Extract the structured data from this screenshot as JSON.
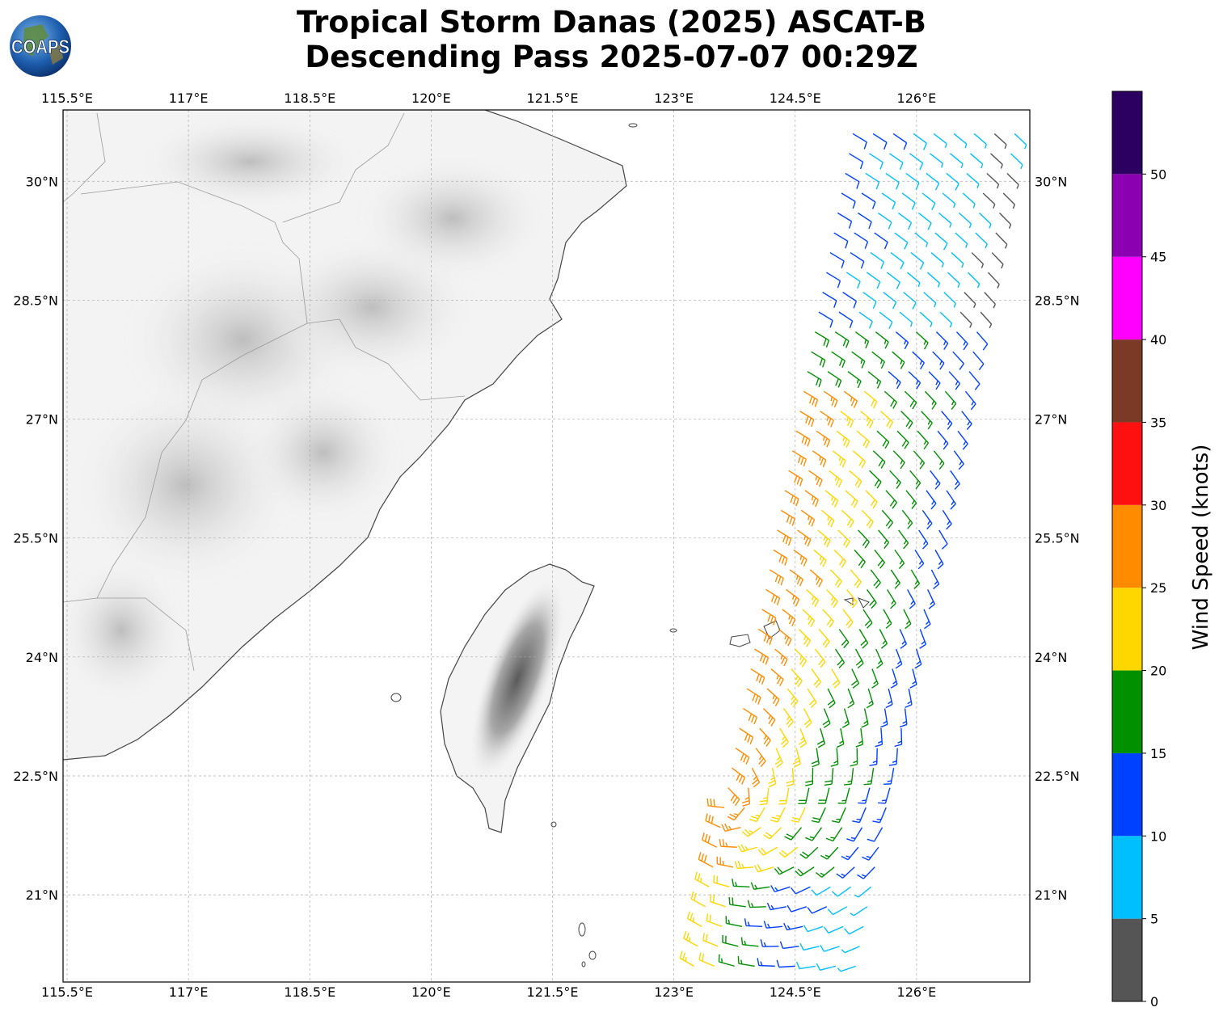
{
  "title": {
    "line1": "Tropical Storm Danas (2025) ASCAT-B",
    "line2": "Descending Pass 2025-07-07 00:29Z"
  },
  "logo": {
    "text": "COAPS",
    "icon": "globe-logo-icon"
  },
  "map": {
    "lon_range": [
      115.45,
      127.4
    ],
    "lat_range": [
      19.9,
      30.9
    ],
    "lon_ticks": [
      "115.5°E",
      "117°E",
      "118.5°E",
      "120°E",
      "121.5°E",
      "123°E",
      "124.5°E",
      "126°E"
    ],
    "lon_tick_values": [
      115.5,
      117,
      118.5,
      120,
      121.5,
      123,
      124.5,
      126
    ],
    "lat_ticks": [
      "30°N",
      "28.5°N",
      "27°N",
      "25.5°N",
      "24°N",
      "22.5°N",
      "21°N"
    ],
    "lat_tick_values": [
      30,
      28.5,
      27,
      25.5,
      24,
      22.5,
      21
    ],
    "grid": true,
    "coastline_color": "#444444",
    "land_shading": "grayscale topography",
    "wind_barbs": {
      "swath_lon_start": [
        123.25,
        125.25
      ],
      "swath_lon_end": [
        125.3,
        127.4
      ],
      "swath_lat": [
        20.1,
        30.8
      ],
      "center_lon": 123.6,
      "center_lat": 22.2
    }
  },
  "colorbar": {
    "label": "Wind Speed (knots)",
    "bins": [
      {
        "from": 0,
        "to": 5,
        "color": "#555555"
      },
      {
        "from": 5,
        "to": 10,
        "color": "#00bfff"
      },
      {
        "from": 10,
        "to": 15,
        "color": "#0040ff"
      },
      {
        "from": 15,
        "to": 20,
        "color": "#009000"
      },
      {
        "from": 20,
        "to": 25,
        "color": "#ffd700"
      },
      {
        "from": 25,
        "to": 30,
        "color": "#ff8c00"
      },
      {
        "from": 30,
        "to": 35,
        "color": "#ff1010"
      },
      {
        "from": 35,
        "to": 40,
        "color": "#7b3a26"
      },
      {
        "from": 40,
        "to": 45,
        "color": "#ff00ff"
      },
      {
        "from": 45,
        "to": 50,
        "color": "#8b00b0"
      },
      {
        "from": 50,
        "to": 55,
        "color": "#2b0060"
      }
    ],
    "tick_labels": [
      "0",
      "5",
      "10",
      "15",
      "20",
      "25",
      "30",
      "35",
      "40",
      "45",
      "50"
    ]
  }
}
